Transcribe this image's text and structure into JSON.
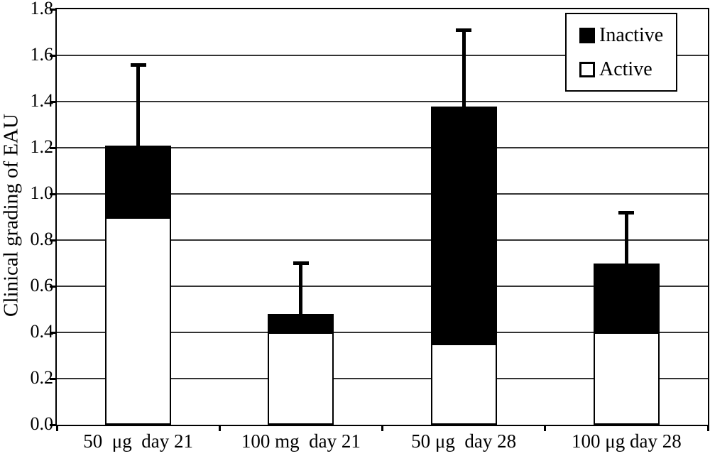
{
  "colors": {
    "background": "#ffffff",
    "ink": "#000000",
    "gridline": "#333333",
    "inactive_fill": "#000000",
    "active_fill": "#ffffff"
  },
  "chart_data": {
    "type": "bar",
    "stacked": true,
    "title": "",
    "xlabel": "",
    "ylabel": "Clinical grading of EAU",
    "ylim": [
      0,
      1.8
    ],
    "ytick_step": 0.2,
    "ytick_labels": [
      "0.0",
      "0.2",
      "0.4",
      "0.6",
      "0.8",
      "1.0",
      "1.2",
      "1.4",
      "1.6",
      "1.8"
    ],
    "grid": true,
    "categories": [
      "50  μg  day 21",
      "100 mg  day 21",
      "50 μg  day 28",
      "100 μg day 28"
    ],
    "series": [
      {
        "name": "Active",
        "fill": "#ffffff",
        "values": [
          0.9,
          0.4,
          0.35,
          0.4
        ]
      },
      {
        "name": "Inactive",
        "fill": "#000000",
        "values": [
          0.31,
          0.08,
          1.03,
          0.3
        ]
      }
    ],
    "stack_totals": [
      1.21,
      0.48,
      1.38,
      0.7
    ],
    "error_bar_tops": [
      1.56,
      0.7,
      1.71,
      0.92
    ],
    "legend": {
      "position": "top-right",
      "entries": [
        {
          "label": "Inactive",
          "fill": "#000000"
        },
        {
          "label": "Active",
          "fill": "#ffffff"
        }
      ]
    }
  }
}
